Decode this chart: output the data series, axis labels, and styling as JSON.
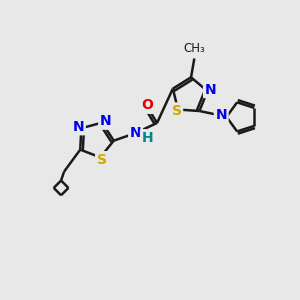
{
  "bg_color": "#e8e8e8",
  "bond_color": "#1a1a1a",
  "bond_width": 1.8,
  "atom_colors": {
    "N": "#0000ee",
    "O": "#ee0000",
    "S": "#ccaa00",
    "H": "#008888",
    "C": "#1a1a1a"
  },
  "font_size": 10
}
